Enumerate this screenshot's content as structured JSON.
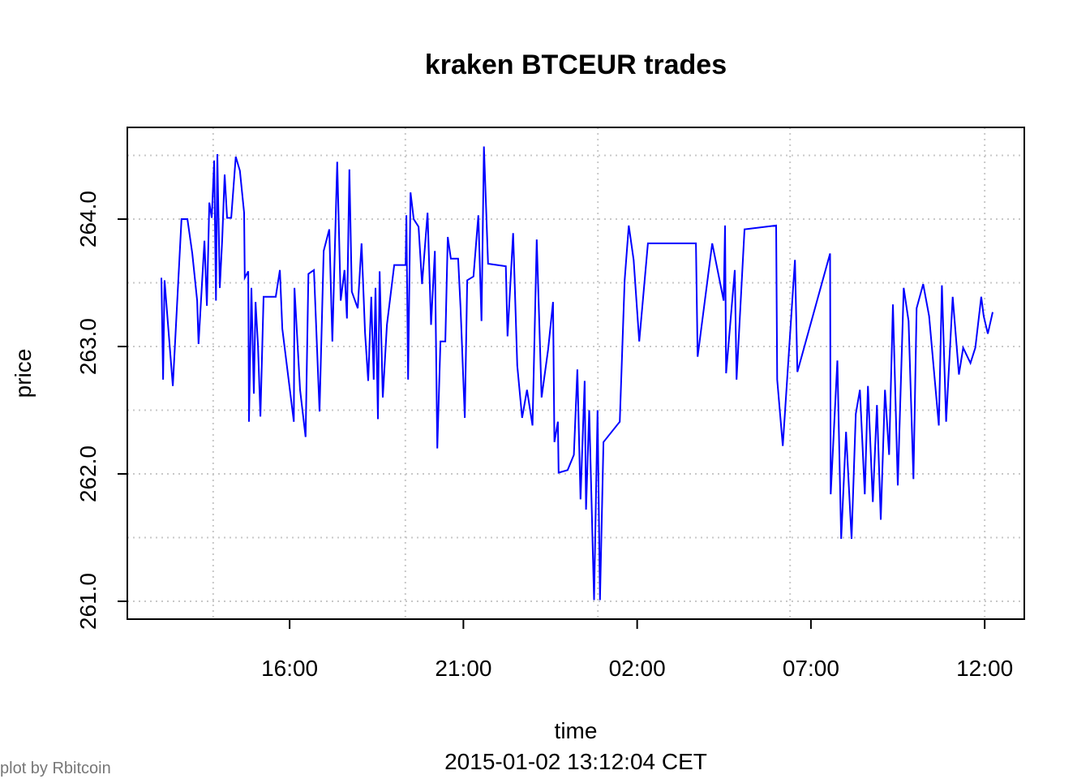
{
  "chart_data": {
    "type": "line",
    "title": "kraken BTCEUR trades",
    "x_label": "time",
    "subtitle": "2015-01-02 13:12:04 CET",
    "y_label": "price",
    "credit": "plot by Rbitcoin",
    "grid": true,
    "xlim": [
      11.33,
      37.14
    ],
    "ylim": [
      260.86,
      264.72
    ],
    "xticks": [
      {
        "value": 16,
        "label": "16:00"
      },
      {
        "value": 21,
        "label": "21:00"
      },
      {
        "value": 26,
        "label": "02:00"
      },
      {
        "value": 31,
        "label": "07:00"
      },
      {
        "value": 36,
        "label": "12:00"
      }
    ],
    "yticks": [
      {
        "value": 261,
        "label": "261.0"
      },
      {
        "value": 262,
        "label": "262.0"
      },
      {
        "value": 263,
        "label": "263.0"
      },
      {
        "value": 264,
        "label": "264.0"
      }
    ],
    "xgrid": [
      13.8,
      19.33,
      24.87,
      30.4,
      36.0
    ],
    "ygrid": [
      261,
      261.5,
      262,
      262.5,
      263,
      263.5,
      264,
      264.5
    ],
    "series": [
      {
        "color": "#0000ff",
        "x": [
          12.31,
          12.36,
          12.4,
          12.64,
          12.89,
          13.06,
          13.2,
          13.34,
          13.38,
          13.55,
          13.62,
          13.69,
          13.76,
          13.83,
          13.88,
          13.92,
          13.99,
          14.06,
          14.13,
          14.2,
          14.32,
          14.45,
          14.57,
          14.69,
          14.71,
          14.81,
          14.83,
          14.9,
          14.97,
          15.02,
          15.09,
          15.16,
          15.25,
          15.6,
          15.72,
          15.79,
          16.12,
          16.14,
          16.3,
          16.46,
          16.54,
          16.7,
          16.86,
          16.98,
          17.14,
          17.23,
          17.37,
          17.47,
          17.58,
          17.65,
          17.72,
          17.79,
          17.96,
          18.07,
          18.17,
          18.26,
          18.35,
          18.42,
          18.47,
          18.54,
          18.59,
          18.68,
          18.8,
          19.01,
          19.34,
          19.36,
          19.41,
          19.48,
          19.57,
          19.71,
          19.81,
          19.97,
          20.07,
          20.18,
          20.25,
          20.34,
          20.48,
          20.55,
          20.64,
          20.85,
          20.92,
          21.04,
          21.11,
          21.29,
          21.43,
          21.52,
          21.59,
          21.71,
          22.22,
          22.27,
          22.43,
          22.55,
          22.69,
          22.83,
          22.99,
          23.11,
          23.25,
          23.44,
          23.58,
          23.62,
          23.72,
          23.74,
          24.0,
          24.18,
          24.28,
          24.37,
          24.49,
          24.53,
          24.62,
          24.76,
          24.86,
          24.93,
          25.03,
          25.5,
          25.64,
          25.76,
          25.9,
          26.06,
          26.31,
          27.69,
          27.74,
          28.16,
          28.49,
          28.53,
          28.56,
          28.81,
          28.86,
          29.09,
          30.0,
          30.03,
          30.19,
          30.54,
          30.61,
          31.55,
          31.57,
          31.76,
          31.87,
          32.01,
          32.17,
          32.29,
          32.41,
          32.55,
          32.64,
          32.78,
          32.9,
          33.01,
          33.13,
          33.25,
          33.36,
          33.5,
          33.67,
          33.81,
          33.95,
          34.04,
          34.23,
          34.4,
          34.68,
          34.77,
          34.89,
          35.08,
          35.26,
          35.38,
          35.59,
          35.73,
          35.9,
          35.97,
          36.09,
          36.23
        ],
        "values": [
          263.54,
          262.74,
          263.52,
          262.69,
          264.0,
          264.0,
          263.73,
          263.36,
          263.02,
          263.83,
          263.32,
          264.13,
          264.01,
          264.46,
          263.36,
          264.51,
          263.46,
          263.84,
          264.35,
          264.01,
          264.01,
          264.49,
          264.38,
          264.05,
          263.54,
          263.59,
          262.41,
          263.46,
          262.63,
          263.35,
          263.01,
          262.45,
          263.39,
          263.39,
          263.6,
          263.14,
          262.41,
          263.46,
          262.66,
          262.29,
          263.57,
          263.6,
          262.49,
          263.75,
          263.92,
          263.04,
          264.45,
          263.36,
          263.6,
          263.22,
          264.39,
          263.43,
          263.3,
          263.81,
          263.11,
          262.73,
          263.39,
          262.74,
          263.46,
          262.43,
          263.59,
          262.6,
          263.17,
          263.64,
          263.64,
          264.03,
          262.74,
          264.21,
          264.0,
          263.94,
          263.49,
          264.05,
          263.17,
          263.75,
          262.2,
          263.04,
          263.04,
          263.86,
          263.69,
          263.69,
          263.3,
          262.44,
          263.52,
          263.55,
          264.03,
          263.2,
          264.57,
          263.65,
          263.63,
          263.08,
          263.89,
          262.85,
          262.44,
          262.66,
          262.38,
          263.84,
          262.6,
          262.98,
          263.35,
          262.25,
          262.41,
          262.01,
          262.03,
          262.15,
          262.82,
          261.8,
          262.73,
          261.72,
          262.5,
          261.01,
          262.5,
          261.01,
          262.25,
          262.41,
          263.52,
          263.95,
          263.68,
          263.04,
          263.81,
          263.81,
          262.92,
          263.81,
          263.36,
          263.95,
          262.79,
          263.6,
          262.74,
          263.92,
          263.95,
          262.74,
          262.22,
          263.68,
          262.8,
          263.73,
          261.84,
          262.89,
          261.49,
          262.33,
          261.49,
          262.47,
          262.66,
          261.84,
          262.69,
          261.78,
          262.54,
          261.64,
          262.66,
          262.15,
          263.33,
          261.91,
          263.46,
          263.2,
          261.96,
          263.3,
          263.49,
          263.24,
          262.38,
          263.48,
          262.41,
          263.39,
          262.78,
          262.99,
          262.87,
          262.99,
          263.39,
          263.24,
          263.1,
          263.27
        ]
      }
    ]
  }
}
